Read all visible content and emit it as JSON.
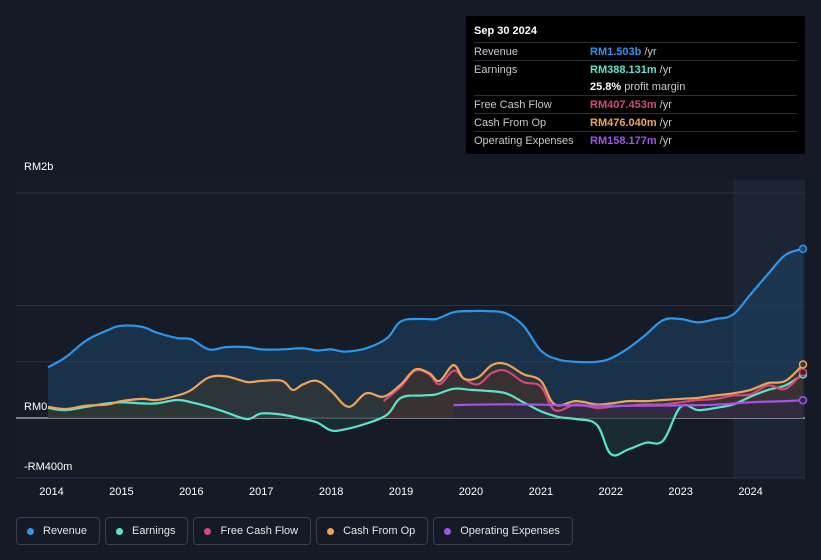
{
  "chart_data": {
    "type": "area",
    "y_axis": {
      "top_label": "RM2b",
      "zero_label": "RM0",
      "bottom_label": "-RM400m",
      "range_m": [
        -400,
        2000
      ]
    },
    "x_ticks": [
      "2014",
      "2015",
      "2016",
      "2017",
      "2018",
      "2019",
      "2020",
      "2021",
      "2022",
      "2023",
      "2024"
    ],
    "x_range": [
      2013.95,
      2024.75
    ],
    "highlight_start": 2023.75,
    "series": [
      {
        "name": "Revenue",
        "color": "#2e95e8",
        "fill": "#1e4566",
        "points": [
          [
            2013.95,
            450
          ],
          [
            2014.2,
            540
          ],
          [
            2014.5,
            690
          ],
          [
            2014.8,
            780
          ],
          [
            2015.0,
            820
          ],
          [
            2015.3,
            810
          ],
          [
            2015.5,
            760
          ],
          [
            2015.8,
            710
          ],
          [
            2016.0,
            700
          ],
          [
            2016.25,
            610
          ],
          [
            2016.5,
            630
          ],
          [
            2016.8,
            630
          ],
          [
            2017.0,
            610
          ],
          [
            2017.3,
            610
          ],
          [
            2017.6,
            620
          ],
          [
            2017.8,
            600
          ],
          [
            2018.0,
            610
          ],
          [
            2018.2,
            590
          ],
          [
            2018.5,
            620
          ],
          [
            2018.8,
            710
          ],
          [
            2019.0,
            860
          ],
          [
            2019.3,
            880
          ],
          [
            2019.5,
            880
          ],
          [
            2019.75,
            940
          ],
          [
            2020.0,
            950
          ],
          [
            2020.25,
            950
          ],
          [
            2020.5,
            930
          ],
          [
            2020.75,
            820
          ],
          [
            2021.0,
            600
          ],
          [
            2021.25,
            520
          ],
          [
            2021.5,
            500
          ],
          [
            2021.8,
            500
          ],
          [
            2022.0,
            530
          ],
          [
            2022.25,
            620
          ],
          [
            2022.5,
            740
          ],
          [
            2022.75,
            870
          ],
          [
            2023.0,
            880
          ],
          [
            2023.25,
            850
          ],
          [
            2023.5,
            880
          ],
          [
            2023.75,
            920
          ],
          [
            2024.0,
            1100
          ],
          [
            2024.25,
            1280
          ],
          [
            2024.5,
            1450
          ],
          [
            2024.75,
            1503
          ]
        ]
      },
      {
        "name": "Earnings",
        "color": "#5de3c9",
        "fill": "#1d3a3a",
        "points": [
          [
            2013.95,
            90
          ],
          [
            2014.2,
            70
          ],
          [
            2014.5,
            100
          ],
          [
            2014.8,
            130
          ],
          [
            2015.0,
            140
          ],
          [
            2015.3,
            130
          ],
          [
            2015.5,
            130
          ],
          [
            2015.8,
            160
          ],
          [
            2016.0,
            140
          ],
          [
            2016.25,
            100
          ],
          [
            2016.5,
            50
          ],
          [
            2016.8,
            -10
          ],
          [
            2017.0,
            40
          ],
          [
            2017.3,
            30
          ],
          [
            2017.6,
            -10
          ],
          [
            2017.8,
            -40
          ],
          [
            2018.0,
            -110
          ],
          [
            2018.2,
            -100
          ],
          [
            2018.5,
            -50
          ],
          [
            2018.8,
            30
          ],
          [
            2019.0,
            180
          ],
          [
            2019.3,
            200
          ],
          [
            2019.5,
            210
          ],
          [
            2019.75,
            260
          ],
          [
            2020.0,
            250
          ],
          [
            2020.25,
            240
          ],
          [
            2020.5,
            220
          ],
          [
            2020.75,
            140
          ],
          [
            2021.0,
            60
          ],
          [
            2021.25,
            10
          ],
          [
            2021.5,
            -10
          ],
          [
            2021.8,
            -60
          ],
          [
            2022.0,
            -320
          ],
          [
            2022.25,
            -280
          ],
          [
            2022.5,
            -220
          ],
          [
            2022.75,
            -200
          ],
          [
            2023.0,
            100
          ],
          [
            2023.25,
            70
          ],
          [
            2023.5,
            90
          ],
          [
            2023.75,
            120
          ],
          [
            2024.0,
            190
          ],
          [
            2024.25,
            250
          ],
          [
            2024.5,
            290
          ],
          [
            2024.75,
            388
          ]
        ]
      },
      {
        "name": "Free Cash Flow",
        "color": "#d4487a",
        "fill": "#4a1e30",
        "points": [
          [
            2018.75,
            150
          ],
          [
            2019.0,
            280
          ],
          [
            2019.2,
            420
          ],
          [
            2019.4,
            390
          ],
          [
            2019.55,
            300
          ],
          [
            2019.75,
            420
          ],
          [
            2019.9,
            350
          ],
          [
            2020.1,
            300
          ],
          [
            2020.3,
            400
          ],
          [
            2020.5,
            420
          ],
          [
            2020.75,
            320
          ],
          [
            2021.0,
            280
          ],
          [
            2021.2,
            70
          ],
          [
            2021.5,
            120
          ],
          [
            2021.8,
            90
          ],
          [
            2022.0,
            100
          ],
          [
            2022.25,
            110
          ],
          [
            2022.5,
            120
          ],
          [
            2022.75,
            120
          ],
          [
            2023.0,
            140
          ],
          [
            2023.25,
            160
          ],
          [
            2023.5,
            170
          ],
          [
            2023.75,
            200
          ],
          [
            2024.0,
            210
          ],
          [
            2024.25,
            290
          ],
          [
            2024.5,
            260
          ],
          [
            2024.75,
            407
          ]
        ]
      },
      {
        "name": "Cash From Op",
        "color": "#eca45a",
        "fill": "#3d3a2e",
        "points": [
          [
            2013.95,
            100
          ],
          [
            2014.2,
            80
          ],
          [
            2014.5,
            110
          ],
          [
            2014.8,
            120
          ],
          [
            2015.0,
            150
          ],
          [
            2015.3,
            170
          ],
          [
            2015.5,
            160
          ],
          [
            2015.8,
            200
          ],
          [
            2016.0,
            250
          ],
          [
            2016.25,
            360
          ],
          [
            2016.5,
            370
          ],
          [
            2016.8,
            320
          ],
          [
            2017.0,
            330
          ],
          [
            2017.3,
            330
          ],
          [
            2017.45,
            250
          ],
          [
            2017.6,
            300
          ],
          [
            2017.8,
            330
          ],
          [
            2018.0,
            240
          ],
          [
            2018.25,
            100
          ],
          [
            2018.5,
            220
          ],
          [
            2018.75,
            190
          ],
          [
            2019.0,
            300
          ],
          [
            2019.2,
            430
          ],
          [
            2019.4,
            400
          ],
          [
            2019.55,
            330
          ],
          [
            2019.75,
            470
          ],
          [
            2019.9,
            350
          ],
          [
            2020.1,
            360
          ],
          [
            2020.3,
            470
          ],
          [
            2020.5,
            480
          ],
          [
            2020.75,
            390
          ],
          [
            2021.0,
            330
          ],
          [
            2021.2,
            120
          ],
          [
            2021.5,
            150
          ],
          [
            2021.8,
            120
          ],
          [
            2022.0,
            130
          ],
          [
            2022.25,
            150
          ],
          [
            2022.5,
            150
          ],
          [
            2022.75,
            160
          ],
          [
            2023.0,
            170
          ],
          [
            2023.25,
            180
          ],
          [
            2023.5,
            200
          ],
          [
            2023.75,
            220
          ],
          [
            2024.0,
            250
          ],
          [
            2024.25,
            310
          ],
          [
            2024.5,
            330
          ],
          [
            2024.75,
            476
          ]
        ]
      },
      {
        "name": "Operating Expenses",
        "color": "#a255e8",
        "fill": "#2e2547",
        "points": [
          [
            2019.75,
            115
          ],
          [
            2020.0,
            118
          ],
          [
            2020.5,
            122
          ],
          [
            2021.0,
            118
          ],
          [
            2021.5,
            112
          ],
          [
            2022.0,
            108
          ],
          [
            2022.5,
            110
          ],
          [
            2023.0,
            112
          ],
          [
            2023.5,
            118
          ],
          [
            2024.0,
            140
          ],
          [
            2024.5,
            150
          ],
          [
            2024.75,
            158
          ]
        ]
      }
    ]
  },
  "tooltip": {
    "date": "Sep 30 2024",
    "rows": [
      {
        "label": "Revenue",
        "value": "RM1.503b",
        "unit": "/yr",
        "color": "#2e95e8"
      },
      {
        "label": "Earnings",
        "value": "RM388.131m",
        "unit": "/yr",
        "color": "#5de3c9"
      },
      {
        "label": "",
        "value": "25.8%",
        "unit": "profit margin",
        "color": "#ffffff"
      },
      {
        "label": "Free Cash Flow",
        "value": "RM407.453m",
        "unit": "/yr",
        "color": "#d4487a"
      },
      {
        "label": "Cash From Op",
        "value": "RM476.040m",
        "unit": "/yr",
        "color": "#eca45a"
      },
      {
        "label": "Operating Expenses",
        "value": "RM158.177m",
        "unit": "/yr",
        "color": "#a255e8"
      }
    ]
  },
  "legend": [
    {
      "label": "Revenue",
      "color": "#2e95e8"
    },
    {
      "label": "Earnings",
      "color": "#5de3c9"
    },
    {
      "label": "Free Cash Flow",
      "color": "#d4487a"
    },
    {
      "label": "Cash From Op",
      "color": "#eca45a"
    },
    {
      "label": "Operating Expenses",
      "color": "#a255e8"
    }
  ]
}
